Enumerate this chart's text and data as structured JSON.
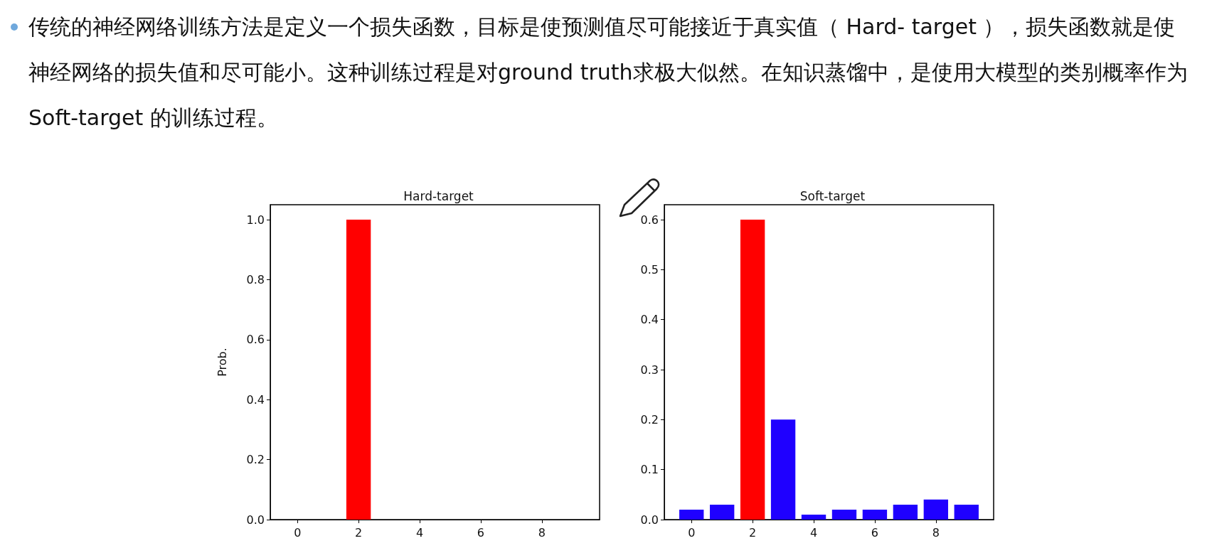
{
  "chart_data": [
    {
      "type": "bar",
      "title": "Hard-target",
      "ylabel": "Prob.",
      "annotations": [
        "传统的神经网络训练方法是定义一个损失函数，目标是使预测值尽可能接近于真实值（ Hard- target ），损失函数就是使神经网络的损失值和尽可能小。这种训练过程是对ground truth求极大似然。在知识蒸馏中，是使用大模型的类别概率作为 Soft-target 的训练过程。"
      ],
      "x": [
        0,
        1,
        2,
        3,
        4,
        5,
        6,
        7,
        8,
        9
      ],
      "values": [
        0,
        0,
        1.0,
        0,
        0,
        0,
        0,
        0,
        0,
        0
      ],
      "colors": [
        "#1f00ff",
        "#1f00ff",
        "#ff0000",
        "#1f00ff",
        "#1f00ff",
        "#1f00ff",
        "#1f00ff",
        "#1f00ff",
        "#1f00ff",
        "#1f00ff"
      ],
      "xlim": [
        -0.89,
        9.89
      ],
      "xticks": [
        0,
        2,
        4,
        6,
        8
      ],
      "ylim": [
        0,
        1.05
      ],
      "yticks": [
        {
          "value": 0,
          "label": "0.0"
        },
        {
          "value": 0.2,
          "label": "0.2"
        },
        {
          "value": 0.4,
          "label": "0.4"
        },
        {
          "value": 0.6,
          "label": "0.6"
        },
        {
          "value": 0.8,
          "label": "0.8"
        },
        {
          "value": 1,
          "label": "1.0"
        }
      ],
      "grid": false
    },
    {
      "type": "bar",
      "title": "Soft-target",
      "x": [
        0,
        1,
        2,
        3,
        4,
        5,
        6,
        7,
        8,
        9
      ],
      "values": [
        0.02,
        0.03,
        0.6,
        0.2,
        0.01,
        0.02,
        0.02,
        0.03,
        0.04,
        0.03
      ],
      "colors": [
        "#1f00ff",
        "#1f00ff",
        "#ff0000",
        "#1f00ff",
        "#1f00ff",
        "#1f00ff",
        "#1f00ff",
        "#1f00ff",
        "#1f00ff",
        "#1f00ff"
      ],
      "xlim": [
        -0.89,
        9.89
      ],
      "xticks": [
        0,
        2,
        4,
        6,
        8
      ],
      "ylim": [
        0,
        0.63
      ],
      "yticks": [
        {
          "value": 0,
          "label": "0.0"
        },
        {
          "value": 0.1,
          "label": "0.1"
        },
        {
          "value": 0.2,
          "label": "0.2"
        },
        {
          "value": 0.3,
          "label": "0.3"
        },
        {
          "value": 0.4,
          "label": "0.4"
        },
        {
          "value": 0.5,
          "label": "0.5"
        },
        {
          "value": 0.6,
          "label": "0.6"
        }
      ],
      "grid": false
    }
  ]
}
